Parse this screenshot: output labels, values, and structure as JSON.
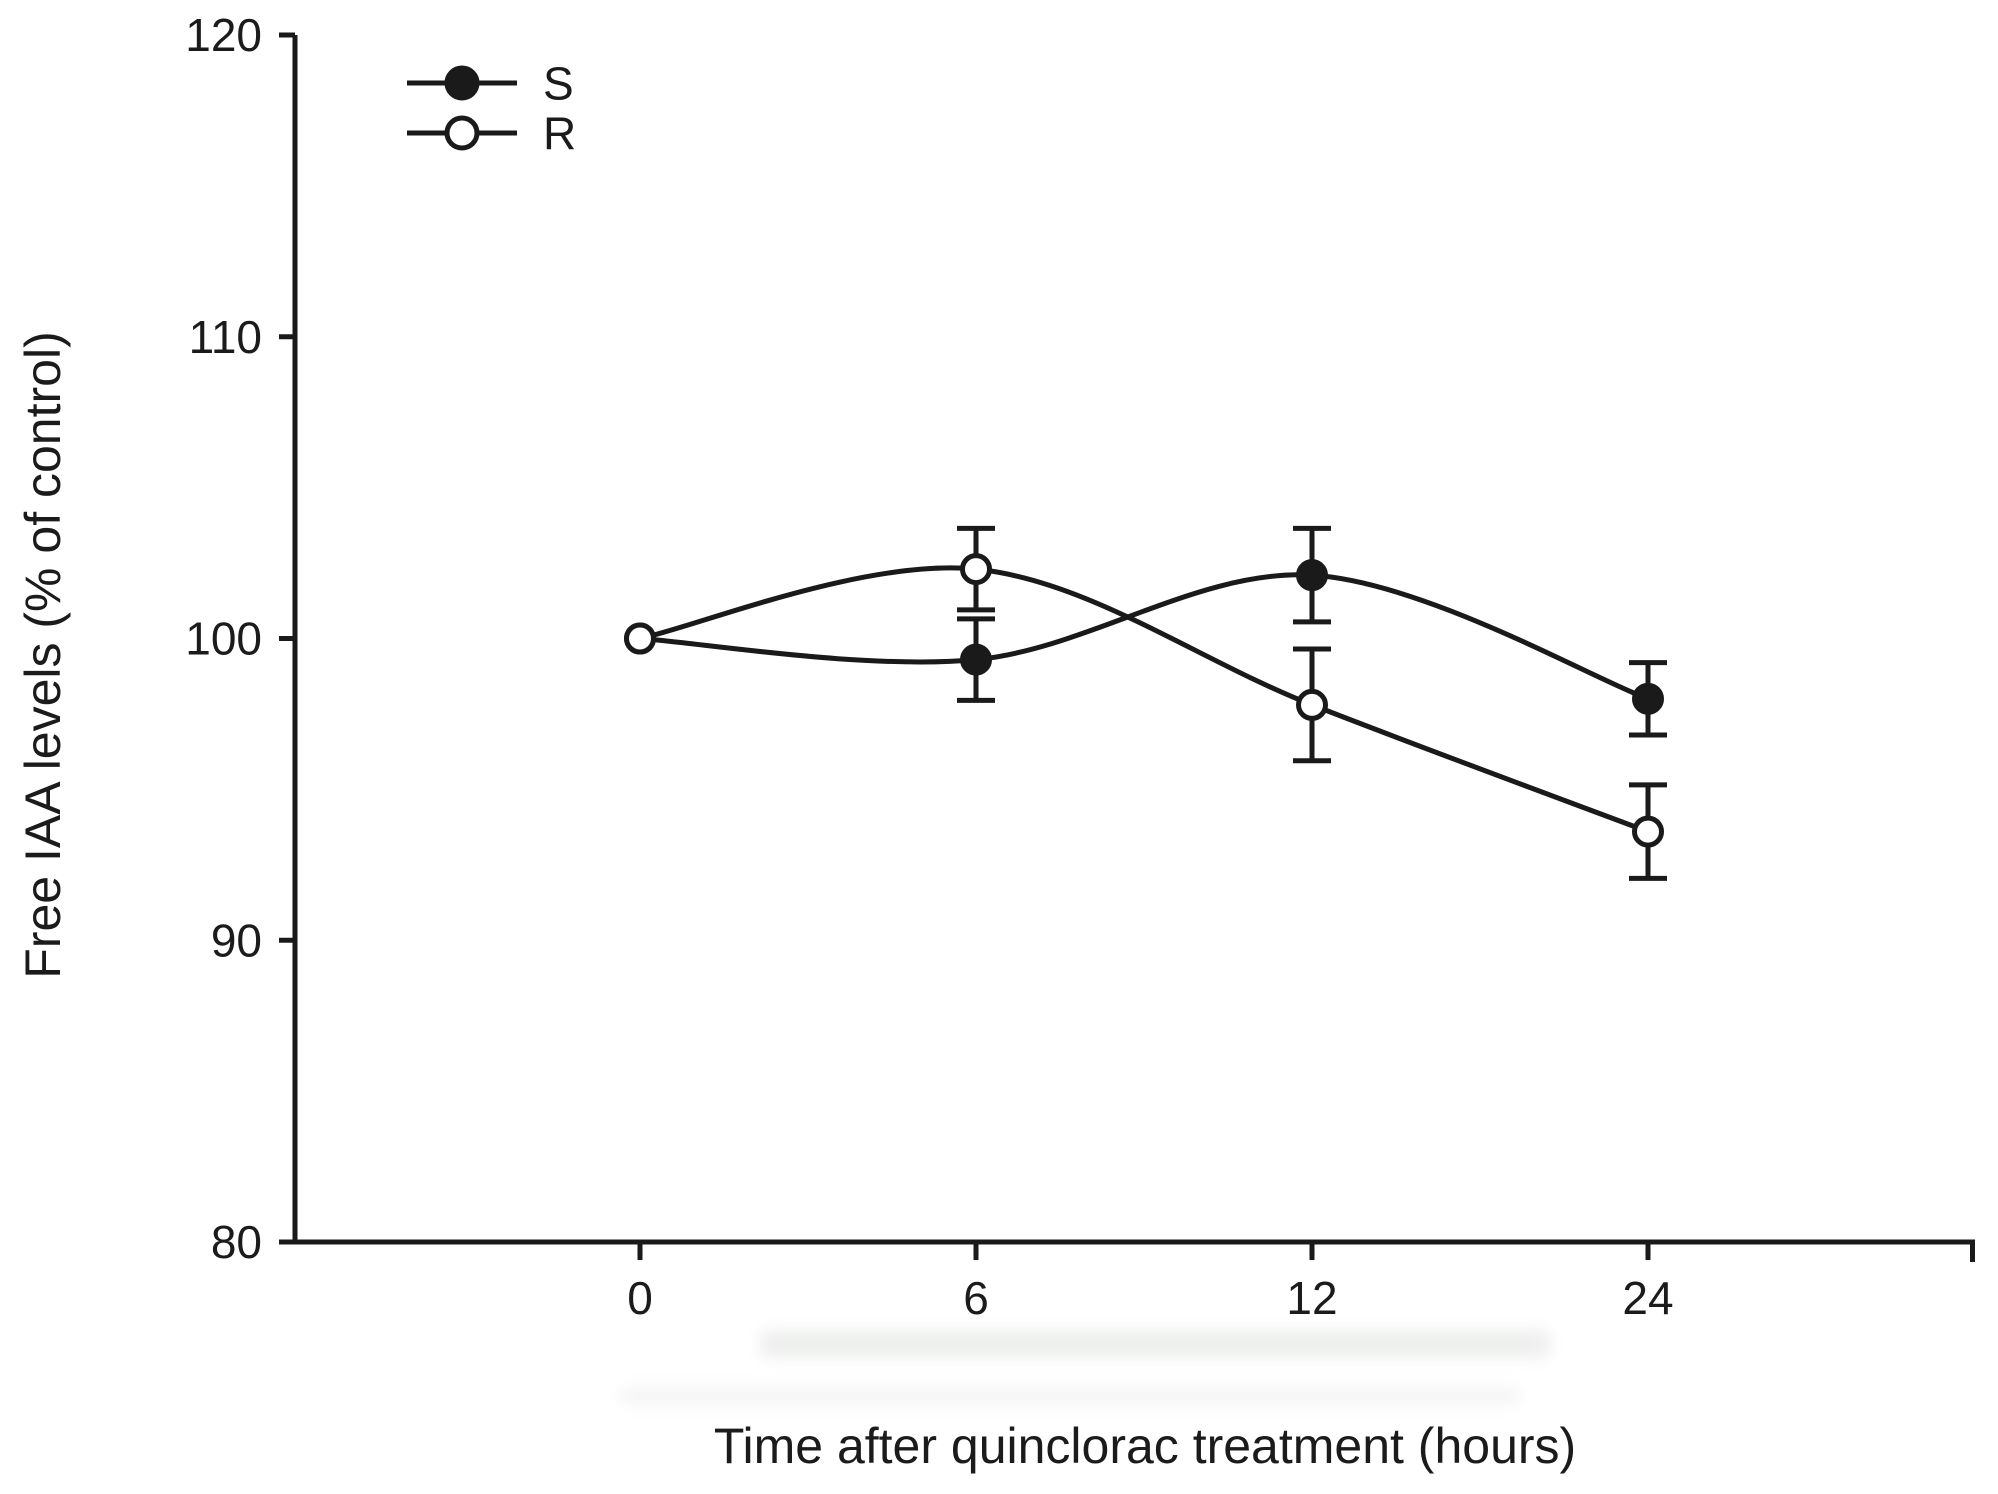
{
  "figure": {
    "background_color": "#ffffff",
    "ink_color": "#1a1a1a"
  },
  "legend": {
    "position": "top-left-inside",
    "entries": [
      {
        "label": "S",
        "marker": "filled-circle"
      },
      {
        "label": "R",
        "marker": "open-circle"
      }
    ]
  },
  "chart_data": {
    "type": "line",
    "x": [
      0,
      6,
      12,
      24
    ],
    "x_tick_labels": [
      "0",
      "6",
      "12",
      "24"
    ],
    "x_spacing": "categorical-equal",
    "series": [
      {
        "name": "S",
        "marker": "filled-circle",
        "color": "#1a1a1a",
        "values": [
          100,
          99.3,
          102.1,
          98.0
        ],
        "errors": [
          0,
          1.35,
          1.55,
          1.2
        ]
      },
      {
        "name": "R",
        "marker": "open-circle",
        "color": "#1a1a1a",
        "values": [
          100,
          102.3,
          97.8,
          93.6
        ],
        "errors": [
          0,
          1.35,
          1.85,
          1.55
        ]
      }
    ],
    "title": "",
    "xlabel": "Time after quinclorac treatment (hours)",
    "ylabel": "Free IAA levels (% of control)",
    "ylim": [
      80,
      120
    ],
    "y_ticks": [
      80,
      90,
      100,
      110,
      120
    ],
    "grid": false,
    "error_bars": true,
    "legend_position": "top-left-inside",
    "line_style": "smooth-spline"
  }
}
